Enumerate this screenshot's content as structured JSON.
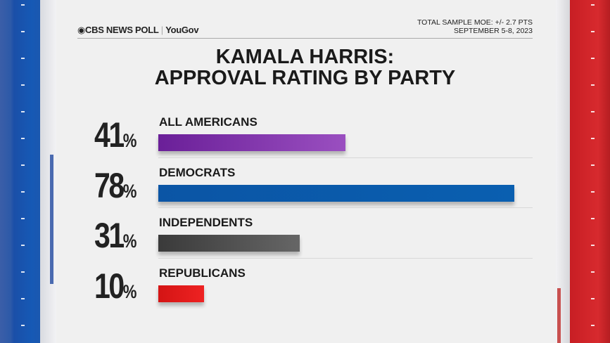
{
  "header": {
    "logo_text": "CBS NEWS POLL",
    "partner": "YouGov",
    "moe": "TOTAL SAMPLE MOE: +/- 2.7 PTS",
    "date": "SEPTEMBER 5-8, 2023"
  },
  "chart_data": {
    "type": "bar",
    "orientation": "horizontal",
    "title": "KAMALA HARRIS: APPROVAL RATING BY PARTY",
    "title_line1": "KAMALA HARRIS:",
    "title_line2": "APPROVAL RATING BY PARTY",
    "categories": [
      "ALL AMERICANS",
      "DEMOCRATS",
      "INDEPENDENTS",
      "REPUBLICANS"
    ],
    "values": [
      41,
      78,
      31,
      10
    ],
    "labels": [
      "41",
      "78",
      "31",
      "10"
    ],
    "unit": "%",
    "colors": [
      [
        "#6a1f98",
        "#9a4fc0"
      ],
      [
        "#0b55a5",
        "#0a5fb0"
      ],
      [
        "#3a3a3a",
        "#666666"
      ],
      [
        "#d41414",
        "#ee2222"
      ]
    ],
    "grid": false
  }
}
